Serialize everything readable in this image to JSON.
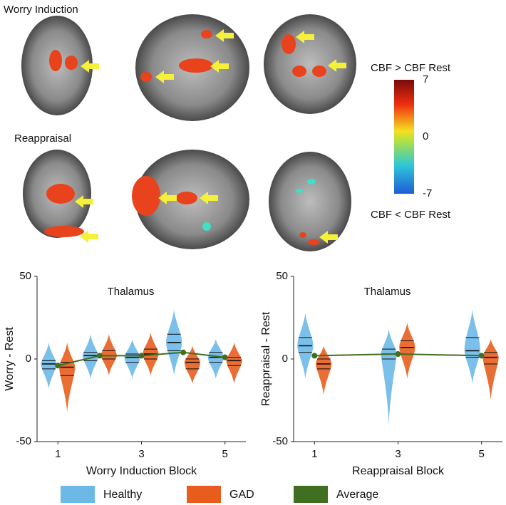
{
  "figure": {
    "row_labels": [
      "Worry Induction",
      "Reappraisal"
    ],
    "colorbar": {
      "title_top": "CBF > CBF Rest",
      "title_bottom": "CBF < CBF Rest",
      "lim": [
        -7,
        7
      ],
      "ticks": [
        -7,
        0,
        7
      ]
    }
  },
  "chart_data": [
    {
      "type": "violin",
      "title": "Thalamus",
      "x_label": "Worry Induction Block",
      "y_label": "Worry - Rest",
      "x": [
        1,
        2,
        3,
        4,
        5
      ],
      "xlim": [
        0.5,
        5.5
      ],
      "xticks": [
        1,
        3,
        5
      ],
      "ylim": [
        -50,
        50
      ],
      "yticks": [
        -50,
        0,
        50
      ],
      "series": [
        {
          "name": "Healthy",
          "color": "#6cb9e8",
          "values": [
            -3,
            2,
            1,
            10,
            1
          ],
          "q1": [
            -6,
            -1,
            -2,
            5,
            -2
          ],
          "q3": [
            -1,
            4,
            3,
            15,
            4
          ],
          "min": [
            -18,
            -12,
            -12,
            -10,
            -12
          ],
          "max": [
            10,
            15,
            12,
            30,
            12
          ]
        },
        {
          "name": "GAD",
          "color": "#e85d1e",
          "values": [
            -5,
            2,
            3,
            -2,
            -1
          ],
          "q1": [
            -10,
            0,
            0,
            -6,
            -4
          ],
          "q3": [
            -2,
            5,
            6,
            0,
            1
          ],
          "min": [
            -32,
            -10,
            -10,
            -15,
            -15
          ],
          "max": [
            10,
            15,
            16,
            8,
            10
          ]
        },
        {
          "name": "Average",
          "color": "#3f6f1f",
          "type": "line",
          "values": [
            -4,
            2,
            2,
            4,
            1
          ]
        }
      ]
    },
    {
      "type": "violin",
      "title": "Thalamus",
      "x_label": "Reappraisal Block",
      "y_label": "Reappraisal - Rest",
      "x": [
        1,
        3,
        5
      ],
      "xlim": [
        0.5,
        5.5
      ],
      "xticks": [
        1,
        3,
        5
      ],
      "ylim": [
        -50,
        50
      ],
      "yticks": [
        -50,
        0,
        50
      ],
      "series": [
        {
          "color": "#6cb9e8",
          "values": [
            8,
            3,
            5
          ],
          "q1": [
            4,
            0,
            1
          ],
          "q3": [
            13,
            6,
            13
          ],
          "min": [
            -12,
            -40,
            -15
          ],
          "max": [
            28,
            18,
            30
          ]
        },
        {
          "color": "#e85d1e",
          "values": [
            -3,
            7,
            1
          ],
          "q1": [
            -6,
            3,
            -3
          ],
          "q3": [
            0,
            11,
            4
          ],
          "min": [
            -22,
            -12,
            -25
          ],
          "max": [
            8,
            22,
            12
          ]
        },
        {
          "color": "#3f6f1f",
          "type": "line",
          "values": [
            2,
            3,
            2
          ]
        }
      ]
    }
  ]
}
